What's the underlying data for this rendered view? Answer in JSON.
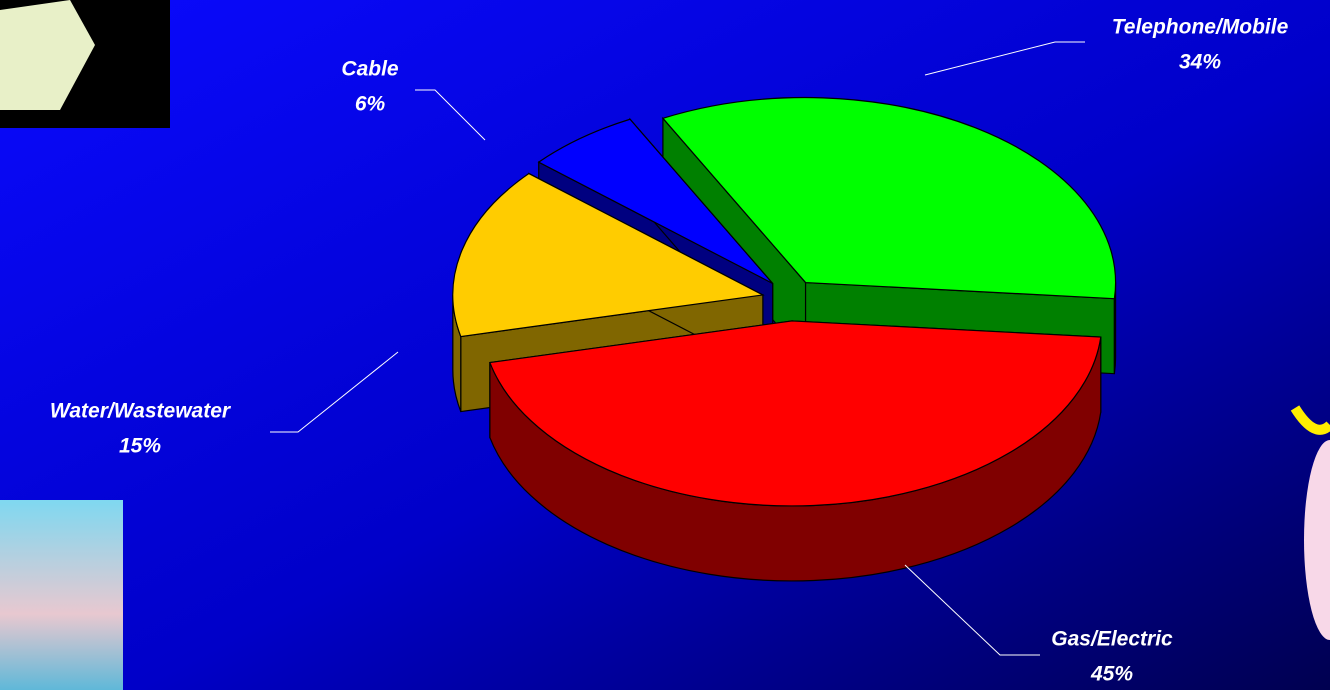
{
  "chart_data": {
    "type": "pie",
    "categories": [
      "Gas/Electric",
      "Water/Wastewater",
      "Cable",
      "Telephone/Mobile"
    ],
    "values": [
      45,
      15,
      6,
      34
    ],
    "value_labels": [
      "45%",
      "15%",
      "6%",
      "34%"
    ],
    "colors": [
      "#ff0000",
      "#ffcc00",
      "#0000ff",
      "#00ff00"
    ]
  }
}
